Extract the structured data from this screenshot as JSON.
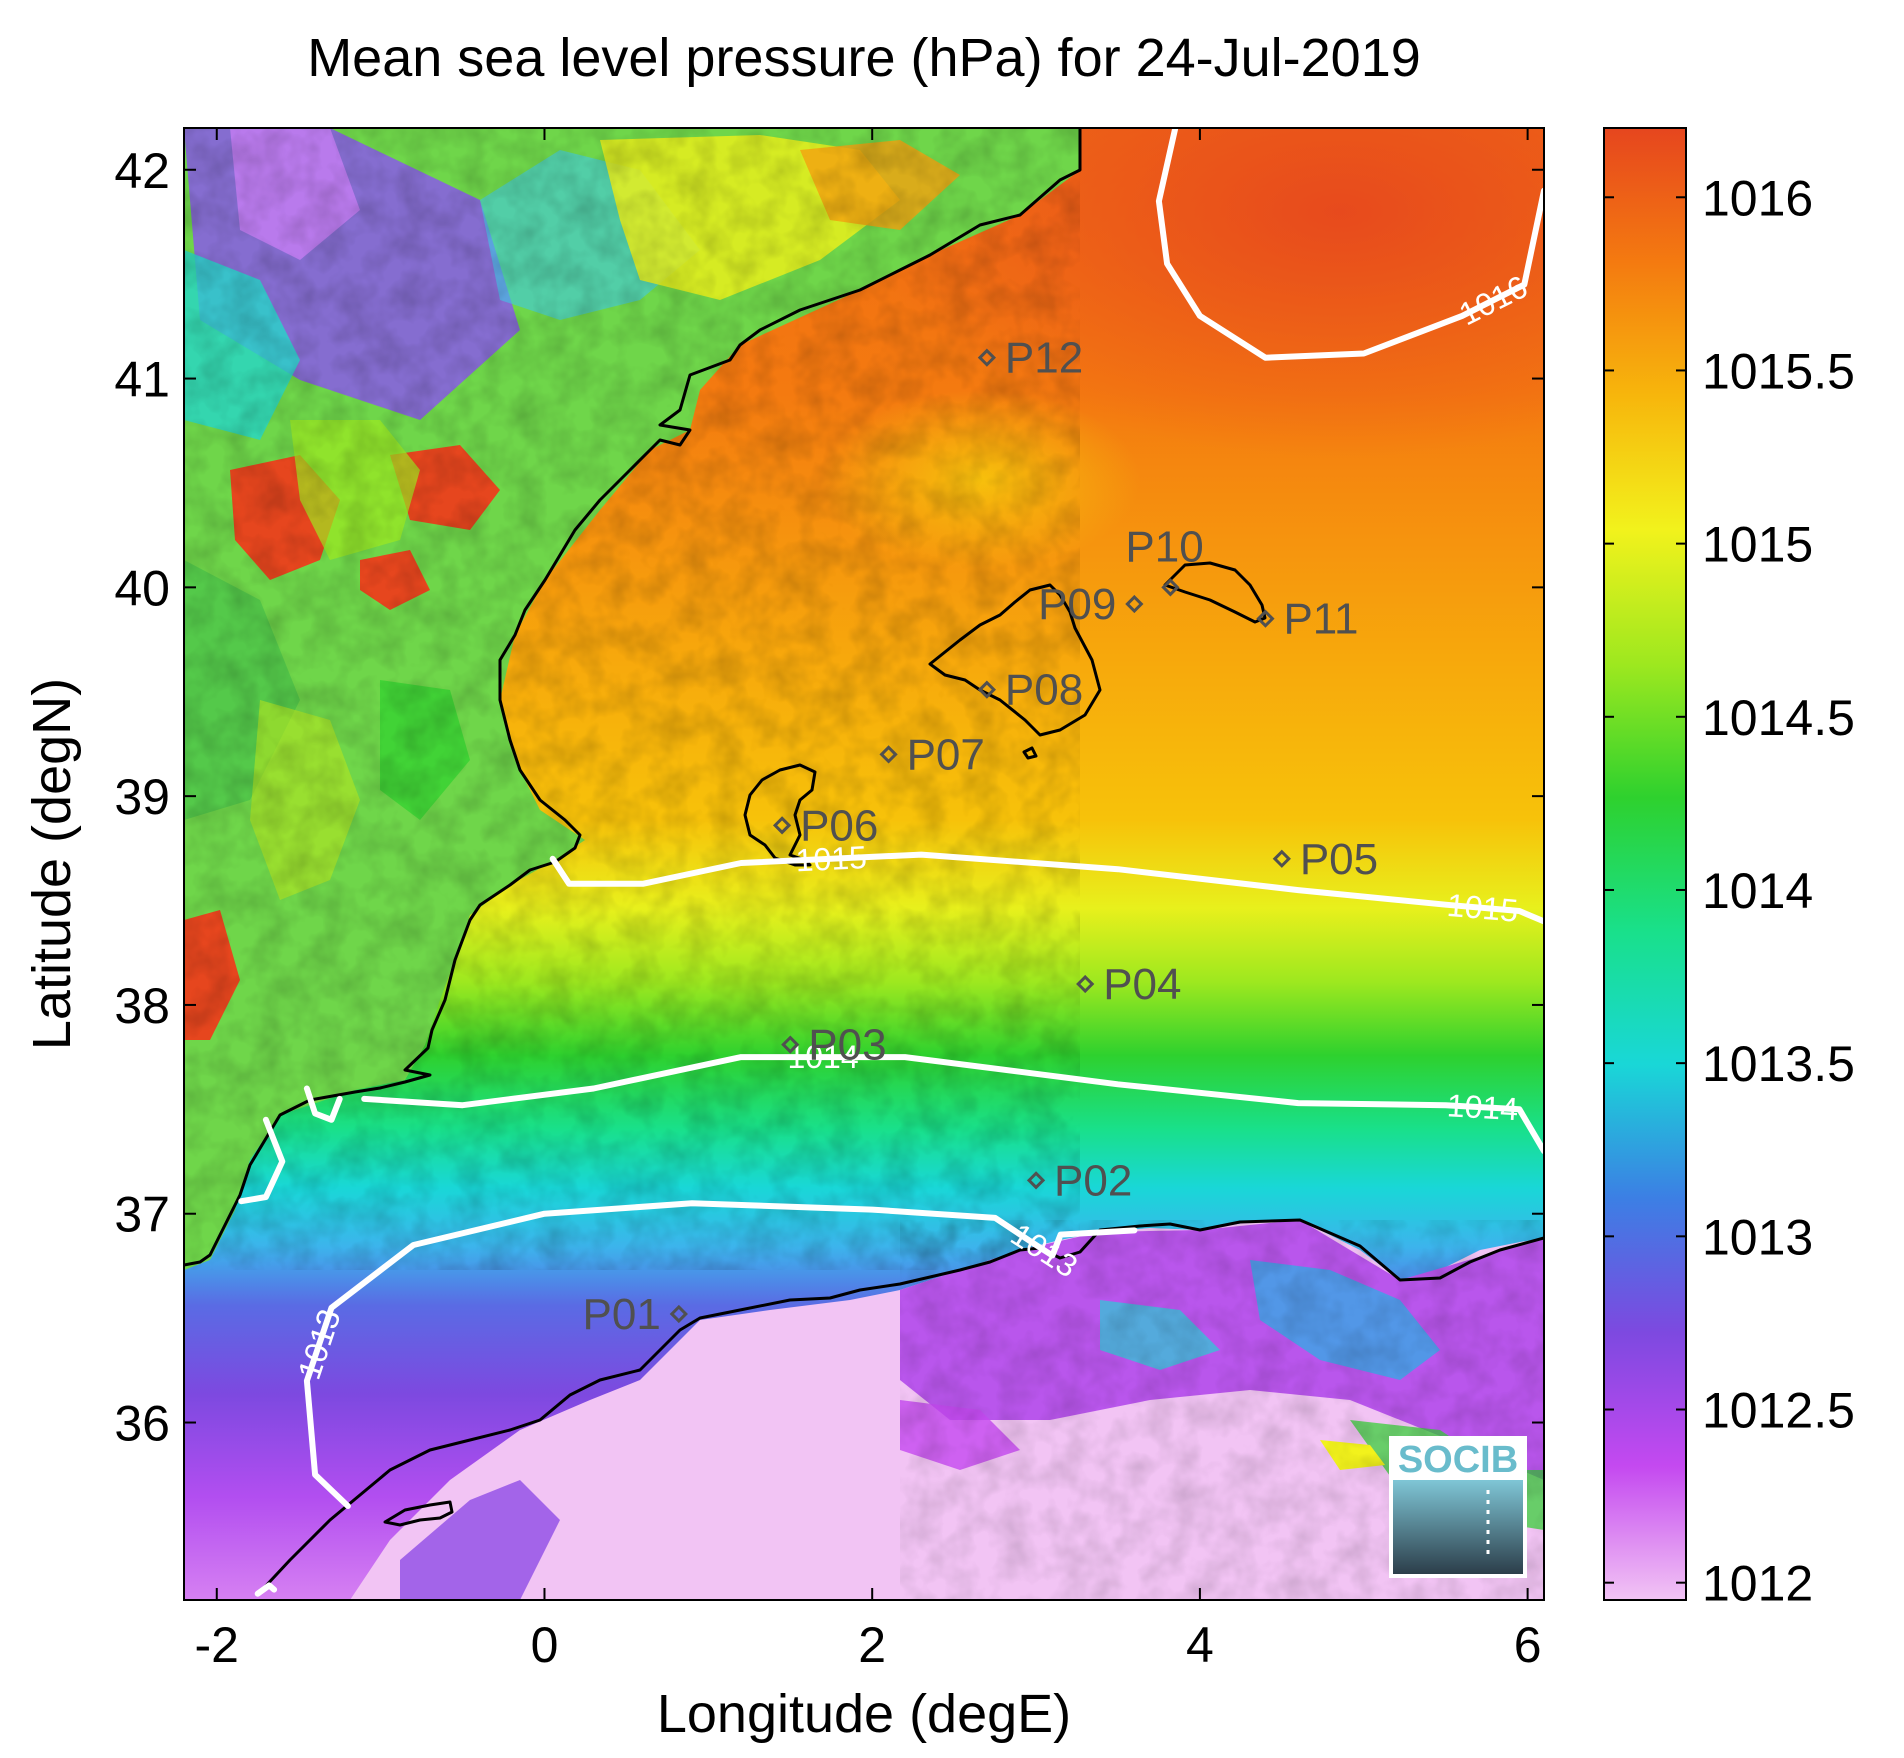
{
  "title": "Mean sea level pressure (hPa) for 24-Jul-2019",
  "xlabel": "Longitude (degE)",
  "ylabel": "Latitude (degN)",
  "logo_text": "SOCIB",
  "colors": {
    "land_green": "#6fd64a",
    "sea_orange": "#f79a12",
    "contour": "#ffffff",
    "coastline": "#000000",
    "station": "#505050"
  },
  "chart_data": {
    "type": "heatmap",
    "title": "Mean sea level pressure (hPa) for 24-Jul-2019",
    "xlabel": "Longitude (degE)",
    "ylabel": "Latitude (degN)",
    "xlim": [
      -2.2,
      6.1
    ],
    "ylim": [
      35.15,
      42.2
    ],
    "x_ticks": [
      -2,
      0,
      2,
      4,
      6
    ],
    "y_ticks": [
      36,
      37,
      38,
      39,
      40,
      41,
      42
    ],
    "colorbar": {
      "range": [
        1011.95,
        1016.2
      ],
      "ticks": [
        1012,
        1012.5,
        1013,
        1013.5,
        1014,
        1014.5,
        1015,
        1015.5,
        1016
      ],
      "tick_labels": [
        "1012",
        "1012.5",
        "1013",
        "1013.5",
        "1014",
        "1014.5",
        "1015",
        "1015.5",
        "1016"
      ],
      "colors": [
        "#f2c4f4",
        "#c449f0",
        "#7d49e0",
        "#3c7fe4",
        "#19d7d7",
        "#19e08a",
        "#2ed12e",
        "#9ee81f",
        "#f2f21c",
        "#f7b60c",
        "#f47a10",
        "#e6461e"
      ]
    },
    "contours": [
      {
        "level": 1016,
        "label": "1016",
        "points": [
          [
            3.85,
            42.2
          ],
          [
            3.75,
            41.85
          ],
          [
            3.8,
            41.55
          ],
          [
            4.0,
            41.3
          ],
          [
            4.4,
            41.1
          ],
          [
            5.0,
            41.12
          ],
          [
            5.6,
            41.3
          ],
          [
            5.98,
            41.45
          ],
          [
            6.1,
            41.9
          ]
        ]
      },
      {
        "level": 1015,
        "label": "1015",
        "points": [
          [
            0.05,
            38.7
          ],
          [
            0.15,
            38.58
          ],
          [
            0.6,
            38.58
          ],
          [
            1.2,
            38.68
          ],
          [
            2.3,
            38.72
          ],
          [
            3.5,
            38.65
          ],
          [
            4.6,
            38.55
          ],
          [
            5.5,
            38.48
          ],
          [
            5.95,
            38.45
          ],
          [
            6.1,
            38.4
          ]
        ]
      },
      {
        "level": 1014,
        "label": "1014",
        "points": [
          [
            -1.1,
            37.55
          ],
          [
            -0.5,
            37.52
          ],
          [
            0.3,
            37.6
          ],
          [
            1.2,
            37.75
          ],
          [
            2.2,
            37.75
          ],
          [
            3.5,
            37.62
          ],
          [
            4.6,
            37.53
          ],
          [
            5.5,
            37.52
          ],
          [
            5.95,
            37.5
          ],
          [
            6.1,
            37.3
          ]
        ]
      },
      {
        "level": 1014,
        "label": "",
        "points": [
          [
            -1.45,
            37.6
          ],
          [
            -1.4,
            37.48
          ],
          [
            -1.3,
            37.45
          ],
          [
            -1.25,
            37.55
          ]
        ]
      },
      {
        "level": 1014,
        "label": "",
        "points": [
          [
            -1.7,
            37.45
          ],
          [
            -1.6,
            37.25
          ],
          [
            -1.7,
            37.08
          ],
          [
            -1.85,
            37.06
          ]
        ]
      },
      {
        "level": 1013,
        "label": "1013",
        "points": [
          [
            -1.2,
            35.6
          ],
          [
            -1.4,
            35.75
          ],
          [
            -1.45,
            36.2
          ],
          [
            -1.3,
            36.55
          ],
          [
            -0.8,
            36.85
          ],
          [
            0.0,
            37.0
          ],
          [
            0.9,
            37.05
          ],
          [
            2.0,
            37.02
          ],
          [
            2.75,
            36.98
          ],
          [
            3.0,
            36.85
          ],
          [
            3.1,
            36.8
          ],
          [
            3.15,
            36.9
          ],
          [
            3.6,
            36.92
          ]
        ]
      },
      {
        "level": 1013,
        "label": "",
        "points": [
          [
            -1.75,
            35.18
          ],
          [
            -1.68,
            35.22
          ],
          [
            -1.65,
            35.2
          ]
        ]
      }
    ],
    "stations": [
      {
        "label": "P01",
        "lon": 0.82,
        "lat": 36.52
      },
      {
        "label": "P02",
        "lon": 3.0,
        "lat": 37.16
      },
      {
        "label": "P03",
        "lon": 1.5,
        "lat": 37.81
      },
      {
        "label": "P04",
        "lon": 3.3,
        "lat": 38.1
      },
      {
        "label": "P05",
        "lon": 4.5,
        "lat": 38.7
      },
      {
        "label": "P06",
        "lon": 1.45,
        "lat": 38.86
      },
      {
        "label": "P07",
        "lon": 2.1,
        "lat": 39.2
      },
      {
        "label": "P08",
        "lon": 2.7,
        "lat": 39.51
      },
      {
        "label": "P09",
        "lon": 3.6,
        "lat": 39.92
      },
      {
        "label": "P10",
        "lon": 3.82,
        "lat": 40.0
      },
      {
        "label": "P11",
        "lon": 4.4,
        "lat": 39.85
      },
      {
        "label": "P12",
        "lon": 2.7,
        "lat": 41.1
      }
    ]
  }
}
